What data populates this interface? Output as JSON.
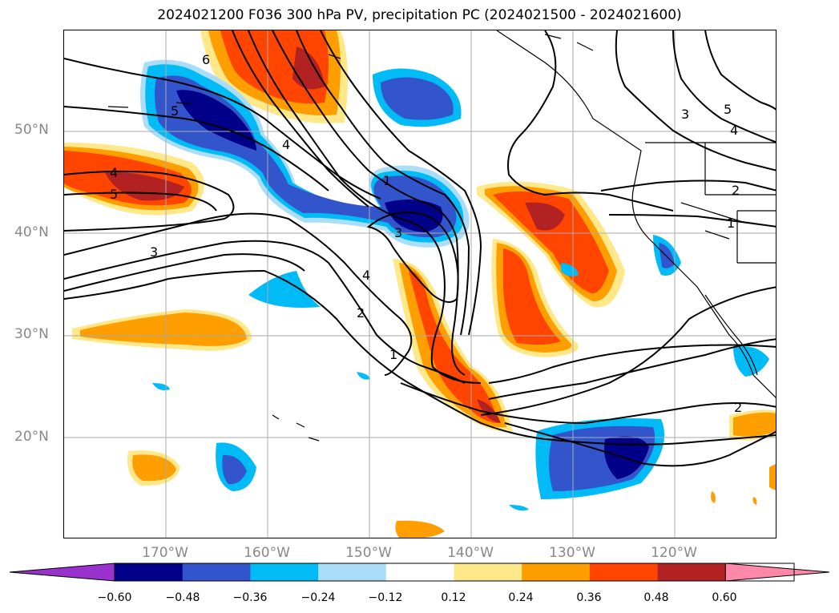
{
  "title": "2024021200 F036 300 hPa PV, precipitation PC (2024021500 - 2024021600)",
  "lat_labels": [
    "50°N",
    "40°N",
    "30°N",
    "20°N"
  ],
  "lon_labels": [
    "170°W",
    "160°W",
    "150°W",
    "140°W",
    "130°W",
    "120°W"
  ],
  "colorbar": {
    "ticks": [
      "−0.60",
      "−0.48",
      "−0.36",
      "−0.24",
      "−0.12",
      "0.12",
      "0.24",
      "0.36",
      "0.48",
      "0.60"
    ],
    "colors": [
      "#9932CC",
      "#000088",
      "#3355CC",
      "#00BBF5",
      "#AADDF8",
      "#FFFFFF",
      "#FFE88A",
      "#FF9E00",
      "#FF4500",
      "#B22222",
      "#FF88AA"
    ]
  },
  "contour_labels": [
    "6",
    "5",
    "4",
    "4",
    "5",
    "3",
    "1",
    "3",
    "4",
    "2",
    "1",
    "3",
    "5",
    "4",
    "2",
    "1",
    "2"
  ]
}
